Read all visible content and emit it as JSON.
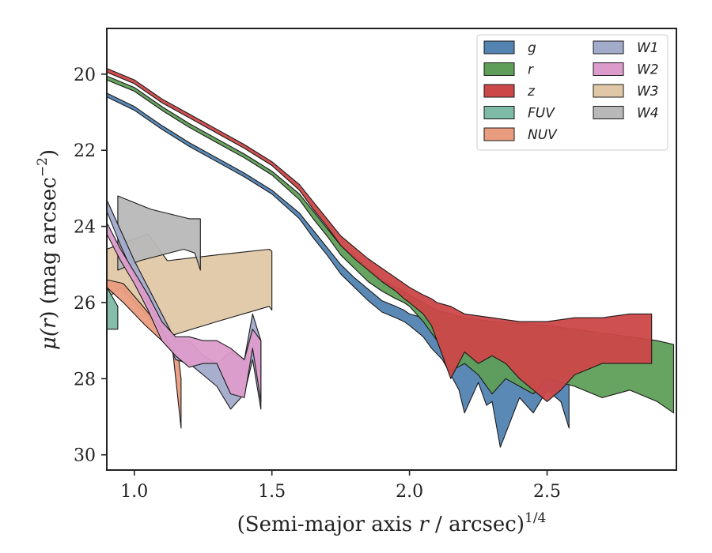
{
  "chart_data": {
    "type": "area",
    "xlabel_main": "(Semi-major axis ",
    "xlabel_var": "r",
    "xlabel_tail": " / arcsec)",
    "xlabel_exp": "1/4",
    "ylabel_main": "μ(",
    "ylabel_var": "r",
    "ylabel_tail": ") (mag arcsec",
    "ylabel_exp": "−2",
    "ylabel_close": ")",
    "xlim": [
      0.9,
      2.97
    ],
    "ylim": [
      30.4,
      18.8
    ],
    "x_ticks": [
      1.0,
      1.5,
      2.0,
      2.5
    ],
    "x_tick_labels": [
      "1.0",
      "1.5",
      "2.0",
      "2.5"
    ],
    "y_ticks": [
      20,
      22,
      24,
      26,
      28,
      30
    ],
    "y_tick_labels": [
      "20",
      "22",
      "24",
      "26",
      "28",
      "30"
    ],
    "legend_position": "top-right",
    "legend_columns": 2,
    "series": [
      {
        "name": "W3",
        "color": "#e0c8a6",
        "upper": [
          [
            0.9,
            24.6
          ],
          [
            1.05,
            24.2
          ],
          [
            1.12,
            24.9
          ],
          [
            1.3,
            24.75
          ],
          [
            1.49,
            24.6
          ],
          [
            1.5,
            24.65
          ]
        ],
        "lower": [
          [
            0.9,
            25.9
          ],
          [
            0.95,
            25.6
          ],
          [
            1.12,
            26.9
          ],
          [
            1.3,
            26.5
          ],
          [
            1.49,
            26.1
          ],
          [
            1.5,
            26.2
          ]
        ]
      },
      {
        "name": "W4",
        "color": "#b8b8b8",
        "upper": [
          [
            0.94,
            23.2
          ],
          [
            1.06,
            23.55
          ],
          [
            1.2,
            23.8
          ],
          [
            1.24,
            23.8
          ]
        ],
        "lower": [
          [
            0.94,
            25.15
          ],
          [
            1.02,
            24.9
          ],
          [
            1.18,
            24.6
          ],
          [
            1.22,
            24.7
          ],
          [
            1.24,
            25.15
          ]
        ]
      },
      {
        "name": "FUV",
        "color": "#7dbba6",
        "upper": [
          [
            0.9,
            25.6
          ],
          [
            0.94,
            26.1
          ]
        ],
        "lower": [
          [
            0.9,
            26.7
          ],
          [
            0.94,
            26.7
          ]
        ]
      },
      {
        "name": "NUV",
        "color": "#e99c7e",
        "upper": [
          [
            0.9,
            25.4
          ],
          [
            0.96,
            25.5
          ],
          [
            1.02,
            26.0
          ],
          [
            1.1,
            26.7
          ],
          [
            1.16,
            27.4
          ],
          [
            1.17,
            28.0
          ]
        ],
        "lower": [
          [
            0.9,
            25.6
          ],
          [
            0.96,
            26.0
          ],
          [
            1.04,
            26.6
          ],
          [
            1.1,
            27.0
          ],
          [
            1.14,
            27.3
          ],
          [
            1.17,
            29.3
          ]
        ]
      },
      {
        "name": "W1",
        "color": "#a3abcb",
        "upper": [
          [
            0.9,
            23.3
          ],
          [
            0.95,
            24.1
          ],
          [
            1.0,
            24.9
          ],
          [
            1.05,
            25.6
          ],
          [
            1.1,
            26.3
          ],
          [
            1.15,
            27.0
          ],
          [
            1.2,
            27.0
          ],
          [
            1.25,
            27.4
          ],
          [
            1.3,
            27.6
          ],
          [
            1.35,
            27.3
          ],
          [
            1.4,
            27.5
          ],
          [
            1.43,
            26.3
          ],
          [
            1.46,
            27.0
          ]
        ],
        "lower": [
          [
            0.9,
            23.6
          ],
          [
            0.95,
            24.5
          ],
          [
            1.0,
            25.3
          ],
          [
            1.05,
            26.0
          ],
          [
            1.1,
            26.7
          ],
          [
            1.15,
            27.5
          ],
          [
            1.2,
            27.6
          ],
          [
            1.25,
            27.9
          ],
          [
            1.3,
            28.2
          ],
          [
            1.35,
            28.8
          ],
          [
            1.4,
            28.4
          ],
          [
            1.43,
            27.5
          ],
          [
            1.46,
            28.8
          ]
        ]
      },
      {
        "name": "W2",
        "color": "#dc9ccb",
        "upper": [
          [
            0.9,
            23.9
          ],
          [
            0.95,
            24.6
          ],
          [
            1.0,
            25.2
          ],
          [
            1.05,
            25.8
          ],
          [
            1.1,
            26.5
          ],
          [
            1.15,
            26.9
          ],
          [
            1.2,
            26.9
          ],
          [
            1.25,
            27.0
          ],
          [
            1.3,
            27.0
          ],
          [
            1.35,
            27.2
          ],
          [
            1.4,
            27.5
          ],
          [
            1.43,
            26.7
          ],
          [
            1.46,
            27.0
          ]
        ],
        "lower": [
          [
            0.9,
            24.2
          ],
          [
            0.95,
            24.9
          ],
          [
            1.0,
            25.5
          ],
          [
            1.05,
            26.2
          ],
          [
            1.1,
            27.0
          ],
          [
            1.15,
            27.4
          ],
          [
            1.2,
            27.7
          ],
          [
            1.25,
            27.6
          ],
          [
            1.3,
            27.6
          ],
          [
            1.35,
            28.4
          ],
          [
            1.4,
            28.5
          ],
          [
            1.43,
            27.2
          ],
          [
            1.46,
            28.6
          ]
        ]
      },
      {
        "name": "g",
        "color": "#5283b1",
        "upper": [
          [
            0.9,
            20.5
          ],
          [
            1.0,
            20.85
          ],
          [
            1.1,
            21.35
          ],
          [
            1.2,
            21.8
          ],
          [
            1.3,
            22.2
          ],
          [
            1.4,
            22.6
          ],
          [
            1.5,
            23.05
          ],
          [
            1.6,
            23.65
          ],
          [
            1.65,
            24.1
          ],
          [
            1.7,
            24.55
          ],
          [
            1.75,
            25.0
          ],
          [
            1.8,
            25.35
          ],
          [
            1.85,
            25.65
          ],
          [
            1.9,
            25.95
          ],
          [
            1.95,
            26.1
          ],
          [
            1.98,
            26.2
          ],
          [
            2.0,
            26.3
          ],
          [
            2.05,
            26.4
          ],
          [
            2.1,
            26.6
          ],
          [
            2.15,
            26.8
          ],
          [
            2.2,
            26.9
          ],
          [
            2.3,
            27.0
          ],
          [
            2.5,
            27.1
          ],
          [
            2.58,
            27.2
          ]
        ],
        "lower": [
          [
            0.9,
            20.6
          ],
          [
            1.0,
            20.95
          ],
          [
            1.1,
            21.45
          ],
          [
            1.2,
            21.9
          ],
          [
            1.3,
            22.3
          ],
          [
            1.4,
            22.7
          ],
          [
            1.5,
            23.15
          ],
          [
            1.6,
            23.8
          ],
          [
            1.65,
            24.3
          ],
          [
            1.7,
            24.75
          ],
          [
            1.75,
            25.25
          ],
          [
            1.8,
            25.6
          ],
          [
            1.85,
            25.95
          ],
          [
            1.9,
            26.25
          ],
          [
            1.95,
            26.4
          ],
          [
            1.98,
            26.5
          ],
          [
            2.0,
            26.6
          ],
          [
            2.05,
            26.9
          ],
          [
            2.08,
            27.2
          ],
          [
            2.12,
            27.5
          ],
          [
            2.15,
            27.9
          ],
          [
            2.18,
            28.3
          ],
          [
            2.2,
            28.9
          ],
          [
            2.25,
            28.1
          ],
          [
            2.28,
            28.7
          ],
          [
            2.3,
            28.6
          ],
          [
            2.33,
            29.8
          ],
          [
            2.4,
            28.5
          ],
          [
            2.45,
            28.9
          ],
          [
            2.5,
            28.3
          ],
          [
            2.55,
            28.6
          ],
          [
            2.58,
            29.3
          ]
        ]
      },
      {
        "name": "r",
        "color": "#5f9e59",
        "upper": [
          [
            0.9,
            20.05
          ],
          [
            1.0,
            20.35
          ],
          [
            1.1,
            20.85
          ],
          [
            1.2,
            21.3
          ],
          [
            1.3,
            21.7
          ],
          [
            1.4,
            22.1
          ],
          [
            1.5,
            22.55
          ],
          [
            1.6,
            23.15
          ],
          [
            1.65,
            23.6
          ],
          [
            1.7,
            24.05
          ],
          [
            1.75,
            24.5
          ],
          [
            1.8,
            24.8
          ],
          [
            1.85,
            25.1
          ],
          [
            1.9,
            25.4
          ],
          [
            1.95,
            25.6
          ],
          [
            1.98,
            25.7
          ],
          [
            2.0,
            25.8
          ],
          [
            2.05,
            26.0
          ],
          [
            2.1,
            26.2
          ],
          [
            2.2,
            26.4
          ],
          [
            2.3,
            26.5
          ],
          [
            2.5,
            26.6
          ],
          [
            2.7,
            26.8
          ],
          [
            2.9,
            27.0
          ],
          [
            2.96,
            27.1
          ]
        ],
        "lower": [
          [
            0.9,
            20.15
          ],
          [
            1.0,
            20.45
          ],
          [
            1.1,
            20.95
          ],
          [
            1.2,
            21.4
          ],
          [
            1.3,
            21.8
          ],
          [
            1.4,
            22.2
          ],
          [
            1.5,
            22.65
          ],
          [
            1.6,
            23.3
          ],
          [
            1.65,
            23.8
          ],
          [
            1.7,
            24.25
          ],
          [
            1.75,
            24.75
          ],
          [
            1.8,
            25.1
          ],
          [
            1.85,
            25.45
          ],
          [
            1.9,
            25.7
          ],
          [
            1.95,
            25.9
          ],
          [
            1.98,
            26.0
          ],
          [
            2.0,
            26.1
          ],
          [
            2.05,
            26.5
          ],
          [
            2.1,
            27.0
          ],
          [
            2.15,
            27.8
          ],
          [
            2.2,
            27.6
          ],
          [
            2.25,
            27.9
          ],
          [
            2.3,
            28.4
          ],
          [
            2.35,
            28.0
          ],
          [
            2.4,
            28.2
          ],
          [
            2.45,
            28.4
          ],
          [
            2.5,
            28.0
          ],
          [
            2.55,
            28.1
          ],
          [
            2.6,
            28.2
          ],
          [
            2.7,
            28.5
          ],
          [
            2.8,
            28.3
          ],
          [
            2.9,
            28.6
          ],
          [
            2.96,
            28.9
          ]
        ]
      },
      {
        "name": "z",
        "color": "#cc4748",
        "upper": [
          [
            0.9,
            19.85
          ],
          [
            1.0,
            20.15
          ],
          [
            1.1,
            20.65
          ],
          [
            1.2,
            21.05
          ],
          [
            1.3,
            21.45
          ],
          [
            1.4,
            21.85
          ],
          [
            1.5,
            22.3
          ],
          [
            1.6,
            22.9
          ],
          [
            1.65,
            23.35
          ],
          [
            1.7,
            23.8
          ],
          [
            1.75,
            24.25
          ],
          [
            1.8,
            24.55
          ],
          [
            1.85,
            24.85
          ],
          [
            1.9,
            25.1
          ],
          [
            1.95,
            25.35
          ],
          [
            1.98,
            25.5
          ],
          [
            2.0,
            25.6
          ],
          [
            2.05,
            25.8
          ],
          [
            2.08,
            25.9
          ],
          [
            2.1,
            26.0
          ],
          [
            2.15,
            26.1
          ],
          [
            2.2,
            26.3
          ],
          [
            2.3,
            26.4
          ],
          [
            2.4,
            26.5
          ],
          [
            2.5,
            26.5
          ],
          [
            2.6,
            26.4
          ],
          [
            2.7,
            26.4
          ],
          [
            2.8,
            26.3
          ],
          [
            2.88,
            26.3
          ]
        ],
        "lower": [
          [
            0.9,
            19.95
          ],
          [
            1.0,
            20.25
          ],
          [
            1.1,
            20.75
          ],
          [
            1.2,
            21.15
          ],
          [
            1.3,
            21.55
          ],
          [
            1.4,
            21.95
          ],
          [
            1.5,
            22.4
          ],
          [
            1.6,
            23.05
          ],
          [
            1.65,
            23.55
          ],
          [
            1.7,
            24.0
          ],
          [
            1.75,
            24.5
          ],
          [
            1.8,
            24.85
          ],
          [
            1.85,
            25.15
          ],
          [
            1.9,
            25.45
          ],
          [
            1.95,
            25.7
          ],
          [
            1.98,
            25.9
          ],
          [
            2.0,
            26.0
          ],
          [
            2.05,
            26.3
          ],
          [
            2.08,
            26.6
          ],
          [
            2.1,
            27.0
          ],
          [
            2.15,
            28.0
          ],
          [
            2.2,
            27.3
          ],
          [
            2.25,
            27.6
          ],
          [
            2.3,
            27.4
          ],
          [
            2.35,
            27.6
          ],
          [
            2.4,
            28.0
          ],
          [
            2.45,
            28.3
          ],
          [
            2.5,
            28.6
          ],
          [
            2.55,
            28.3
          ],
          [
            2.6,
            27.9
          ],
          [
            2.7,
            27.6
          ],
          [
            2.8,
            27.6
          ],
          [
            2.88,
            27.6
          ]
        ]
      }
    ],
    "legend_col1": [
      "g",
      "r",
      "z",
      "FUV",
      "NUV"
    ],
    "legend_col2": [
      "W1",
      "W2",
      "W3",
      "W4"
    ]
  }
}
